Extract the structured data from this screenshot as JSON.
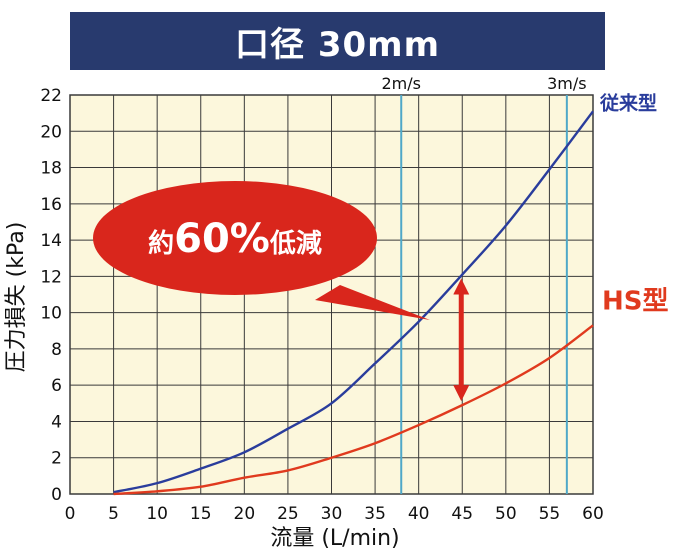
{
  "chart_data": {
    "type": "line",
    "title": "口径 30mm",
    "xlabel": "流量 (L/min)",
    "ylabel": "圧力損失 (kPa)",
    "xlim": [
      0,
      60
    ],
    "ylim": [
      0,
      22
    ],
    "xticks": [
      0,
      5,
      10,
      15,
      20,
      25,
      30,
      35,
      40,
      45,
      50,
      55,
      60
    ],
    "yticks": [
      0,
      2,
      4,
      6,
      8,
      10,
      12,
      14,
      16,
      18,
      20,
      22
    ],
    "grid": true,
    "series": [
      {
        "name": "従来型",
        "color": "#2a3d9c",
        "x": [
          5,
          10,
          15,
          20,
          25,
          30,
          35,
          40,
          45,
          50,
          55,
          60
        ],
        "y": [
          0.1,
          0.6,
          1.4,
          2.3,
          3.6,
          5.0,
          7.2,
          9.5,
          12.1,
          14.8,
          17.9,
          21.1
        ]
      },
      {
        "name": "HS型",
        "color": "#e03a1e",
        "x": [
          5,
          10,
          15,
          20,
          25,
          30,
          35,
          40,
          45,
          50,
          55,
          60
        ],
        "y": [
          0.0,
          0.15,
          0.4,
          0.9,
          1.3,
          2.0,
          2.8,
          3.8,
          4.9,
          6.1,
          7.5,
          9.3
        ]
      }
    ],
    "reference_lines": [
      {
        "label": "2m/s",
        "x": 38,
        "color": "#4fa8c8"
      },
      {
        "label": "3m/s",
        "x": 57,
        "color": "#4fa8c8"
      }
    ],
    "annotation": {
      "text_prefix": "約",
      "text_value": "60%",
      "text_suffix": "低減",
      "x": 45,
      "y_top": 12.1,
      "y_bottom": 4.9,
      "color": "#d9261c"
    }
  },
  "colors": {
    "plot_background": "#fcf7dc",
    "grid": "#3a3a3a",
    "title_bar": "#283a6e"
  }
}
